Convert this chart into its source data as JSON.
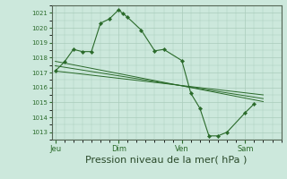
{
  "bg_color": "#cce8dc",
  "grid_color": "#aaccbb",
  "line_color": "#2a6a2a",
  "marker_color": "#2a6a2a",
  "xlabel": "Pression niveau de la mer( hPa )",
  "xlabel_fontsize": 8,
  "ylim": [
    1012.5,
    1021.5
  ],
  "yticks": [
    1013,
    1014,
    1015,
    1016,
    1017,
    1018,
    1019,
    1020,
    1021
  ],
  "xtick_labels": [
    "Jeu",
    "Dim",
    "Ven",
    "Sam"
  ],
  "xtick_positions": [
    0,
    3.5,
    7,
    10.5
  ],
  "xlim_min": -0.2,
  "xlim_max": 12.5,
  "main_line_x": [
    0,
    0.5,
    1.0,
    1.5,
    2.0,
    2.5,
    3.0,
    3.5,
    3.75,
    4.0,
    4.75,
    5.5,
    6.0,
    7.0,
    7.5,
    8.0,
    8.5,
    9.0,
    9.5,
    10.5,
    11.0
  ],
  "main_line_y": [
    1017.1,
    1017.7,
    1018.55,
    1018.4,
    1018.4,
    1020.3,
    1020.6,
    1021.2,
    1020.95,
    1020.7,
    1019.85,
    1018.45,
    1018.55,
    1017.8,
    1015.6,
    1014.6,
    1012.75,
    1012.75,
    1013.0,
    1014.3,
    1014.9
  ],
  "flat_line1_x": [
    0,
    11.5
  ],
  "flat_line1_y": [
    1017.75,
    1015.05
  ],
  "flat_line2_x": [
    0,
    11.5
  ],
  "flat_line2_y": [
    1017.45,
    1015.25
  ],
  "flat_line3_x": [
    0,
    11.5
  ],
  "flat_line3_y": [
    1017.1,
    1015.5
  ]
}
